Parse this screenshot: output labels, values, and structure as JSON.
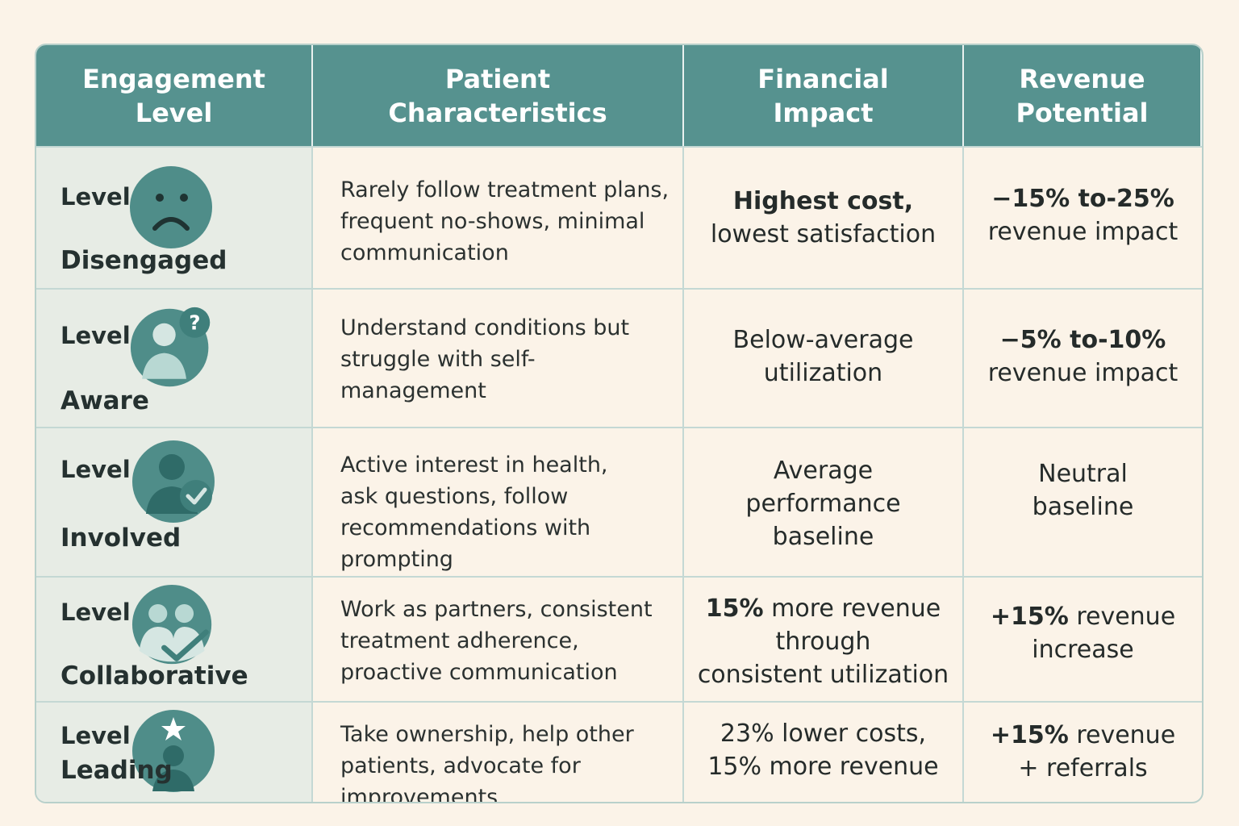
{
  "header": {
    "col1": "Engagement\nLevel",
    "col2": "Patient\nCharacteristics",
    "col3": "Financial\nImpact",
    "col4": "Revenue\nPotential"
  },
  "rows": [
    {
      "level_word": "Level",
      "level_name": "Disengaged",
      "icon": "sad-face-icon",
      "characteristics": "Rarely follow treatment plans, frequent no-shows, minimal communication",
      "financial_bold": "Highest cost,",
      "financial_rest": "lowest satisfaction",
      "revenue_bold": "−15% to-25%",
      "revenue_rest": "revenue impact"
    },
    {
      "level_word": "Level",
      "level_name": "Aware",
      "icon": "person-question-icon",
      "characteristics": "Understand conditions but struggle with self-management",
      "financial_bold": "",
      "financial_rest": "Below-average\nutilization",
      "revenue_bold": "−5% to-10%",
      "revenue_rest": "revenue impact"
    },
    {
      "level_word": "Level",
      "level_name": "Involved",
      "icon": "person-check-icon",
      "characteristics": "Active interest in health, ask questions, follow recommendations with prompting",
      "financial_bold": "",
      "financial_rest": "Average\nperformance\nbaseline",
      "revenue_bold": "",
      "revenue_rest": "Neutral\nbaseline"
    },
    {
      "level_word": "Level",
      "level_name": "Collaborative",
      "icon": "two-people-check-icon",
      "characteristics": "Work as partners, consistent treatment adherence, proactive communication",
      "financial_bold": "15%",
      "financial_rest": " more revenue\nthrough\nconsistent utilization",
      "revenue_bold": "+15%",
      "revenue_rest": " revenue\nincrease"
    },
    {
      "level_word": "Level",
      "level_name": "Leading",
      "icon": "person-star-icon",
      "characteristics": "Take ownership, help other patients, advocate for improvements",
      "financial_bold": "",
      "financial_rest": "23% lower costs,\n15% more revenue",
      "revenue_bold": "+15%",
      "revenue_rest": " revenue\n+ referrals"
    }
  ],
  "colors": {
    "header_bg": "#56928f",
    "icon_dark": "#4f8d89",
    "icon_light": "#b8d8d3",
    "page_bg": "#fbf3e8"
  }
}
